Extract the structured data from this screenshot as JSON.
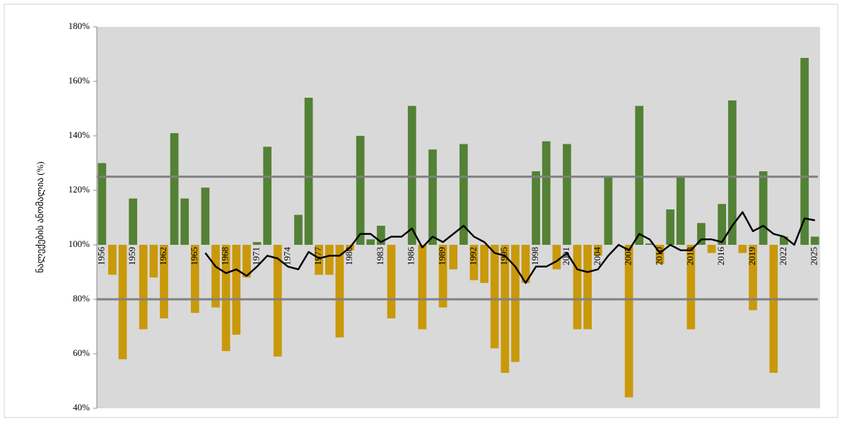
{
  "chart_data": {
    "type": "bar",
    "y_label": "ნალექების ანომალია (%)",
    "categories": [
      "1956",
      null,
      null,
      "1959",
      null,
      null,
      "1962",
      null,
      null,
      "1965",
      null,
      null,
      "1968",
      null,
      null,
      "1971",
      null,
      null,
      "1974",
      null,
      null,
      "1977",
      null,
      null,
      "1980",
      null,
      null,
      "1983",
      null,
      null,
      "1986",
      null,
      null,
      "1989",
      null,
      null,
      "1992",
      null,
      null,
      "1995",
      null,
      null,
      "1998",
      null,
      null,
      "2001",
      null,
      null,
      "2004",
      null,
      null,
      "2007",
      null,
      null,
      "2010",
      null,
      null,
      "2013",
      null,
      null,
      "2016",
      null,
      null,
      "2019",
      null,
      null,
      "2022",
      null,
      null,
      "2025"
    ],
    "values": [
      130,
      89,
      58,
      117,
      69,
      88,
      73,
      141,
      117,
      75,
      121,
      77,
      61,
      67,
      88,
      101,
      136,
      59,
      100,
      111,
      154,
      89,
      89,
      66,
      98,
      140,
      102,
      107,
      73,
      100,
      151,
      69,
      135,
      77,
      91,
      137,
      87,
      86,
      62,
      53,
      57,
      86,
      127,
      138,
      91,
      137,
      69,
      69,
      96,
      125,
      100,
      44,
      151,
      100.5,
      93,
      113,
      125,
      69,
      108,
      97,
      115,
      153,
      97,
      76,
      127,
      53,
      103,
      100,
      168.6,
      103
    ],
    "base": 100,
    "color_above": "#538135",
    "color_below": "#c9990a",
    "line": {
      "color": "#000000",
      "values": [
        null,
        null,
        null,
        null,
        null,
        null,
        null,
        null,
        null,
        null,
        97,
        92,
        89.6,
        91,
        88.6,
        92,
        96,
        95,
        92,
        91,
        97.4,
        95,
        96,
        96,
        99,
        104,
        104,
        101,
        103,
        103,
        106,
        99,
        103,
        101,
        104,
        107,
        103,
        101,
        97,
        96,
        92,
        86,
        92,
        92,
        94,
        97,
        91,
        90,
        91,
        96,
        100,
        98,
        104,
        102,
        97,
        100,
        98,
        98,
        102,
        102,
        101,
        107,
        112,
        105,
        107,
        104,
        103,
        100,
        109.7,
        109
      ]
    },
    "reference_lines": [
      125,
      80
    ],
    "reference_color": "#808080",
    "ylim": [
      40,
      180
    ],
    "yticks": [
      {
        "value": 40,
        "label": "40%"
      },
      {
        "value": 60,
        "label": "60%"
      },
      {
        "value": 80,
        "label": "80%"
      },
      {
        "value": 100,
        "label": "100%"
      },
      {
        "value": 120,
        "label": "120%"
      },
      {
        "value": 140,
        "label": "140%"
      },
      {
        "value": 160,
        "label": "160%"
      },
      {
        "value": 180,
        "label": "180%"
      }
    ],
    "background": "#d9d9d9"
  }
}
